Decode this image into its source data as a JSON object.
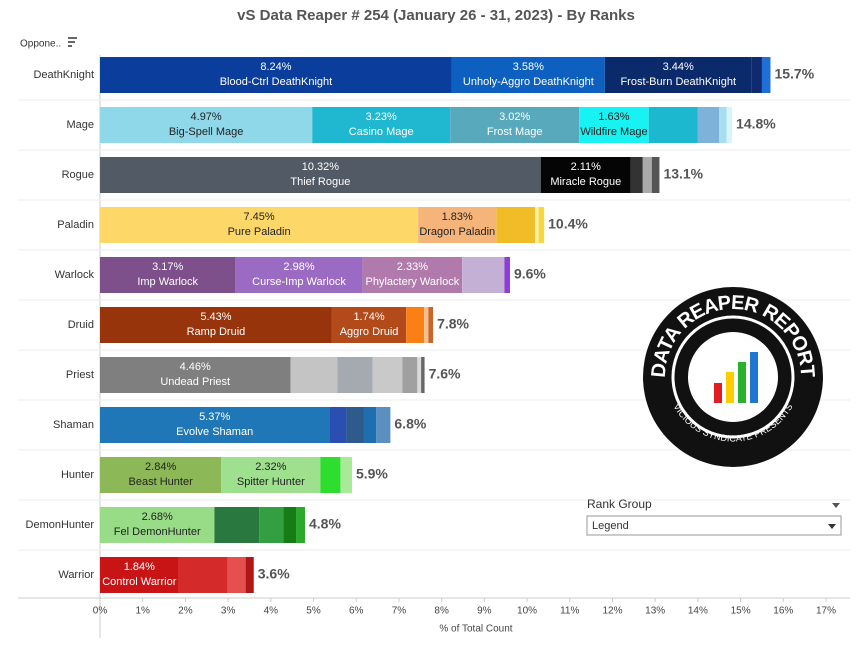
{
  "chart_data": {
    "type": "stacked-bar-h",
    "title": "vS Data Reaper #  254 (January 26 - 31, 2023) - By Ranks",
    "row_header": "Oppone..",
    "x_label": "% of Total Count",
    "xlim": [
      0,
      17
    ],
    "xticks": [
      {
        "value": 0,
        "label": "0%"
      },
      {
        "value": 1,
        "label": "1%"
      },
      {
        "value": 2,
        "label": "2%"
      },
      {
        "value": 3,
        "label": "3%"
      },
      {
        "value": 4,
        "label": "4%"
      },
      {
        "value": 5,
        "label": "5%"
      },
      {
        "value": 6,
        "label": "6%"
      },
      {
        "value": 7,
        "label": "7%"
      },
      {
        "value": 8,
        "label": "8%"
      },
      {
        "value": 9,
        "label": "9%"
      },
      {
        "value": 10,
        "label": "10%"
      },
      {
        "value": 11,
        "label": "11%"
      },
      {
        "value": 12,
        "label": "12%"
      },
      {
        "value": 13,
        "label": "13%"
      },
      {
        "value": 14,
        "label": "14%"
      },
      {
        "value": 15,
        "label": "15%"
      },
      {
        "value": 16,
        "label": "16%"
      },
      {
        "value": 17,
        "label": "17%"
      }
    ],
    "categories": [
      "DeathKnight",
      "Mage",
      "Rogue",
      "Paladin",
      "Warlock",
      "Druid",
      "Priest",
      "Shaman",
      "Hunter",
      "DemonHunter",
      "Warrior"
    ],
    "totals": [
      15.7,
      14.8,
      13.1,
      10.4,
      9.6,
      7.8,
      7.6,
      6.8,
      5.9,
      4.8,
      3.6
    ],
    "total_labels": [
      "15.7%",
      "14.8%",
      "13.1%",
      "10.4%",
      "9.6%",
      "7.8%",
      "7.6%",
      "6.8%",
      "5.9%",
      "4.8%",
      "3.6%"
    ],
    "rows": [
      [
        {
          "name": "Blood-Ctrl DeathKnight",
          "value": 8.24,
          "value_label": "8.24%",
          "color": "#0a3d9c"
        },
        {
          "name": "Unholy-Aggro DeathKnight",
          "value": 3.58,
          "value_label": "3.58%",
          "color": "#0d5fc0"
        },
        {
          "name": "Frost-Burn DeathKnight",
          "value": 3.44,
          "value_label": "3.44%",
          "color": "#0b2a6b"
        },
        {
          "value": 0.24,
          "color": "#102a70"
        },
        {
          "value": 0.2,
          "color": "#1f6fd6"
        }
      ],
      [
        {
          "name": "Big-Spell Mage",
          "value": 4.97,
          "value_label": "4.97%",
          "color": "#8fd8ea"
        },
        {
          "name": "Casino Mage",
          "value": 3.23,
          "value_label": "3.23%",
          "color": "#1fb8d0"
        },
        {
          "name": "Frost Mage",
          "value": 3.02,
          "value_label": "3.02%",
          "color": "#58a9bb"
        },
        {
          "name": "Wildfire Mage",
          "value": 1.63,
          "value_label": "1.63%",
          "color": "#19f2f2"
        },
        {
          "value": 1.15,
          "color": "#1cb8d0"
        },
        {
          "value": 0.5,
          "color": "#7fb2d9"
        },
        {
          "value": 0.17,
          "color": "#a8dcef"
        },
        {
          "value": 0.13,
          "color": "#d7f4fb"
        }
      ],
      [
        {
          "name": "Thief Rogue",
          "value": 10.32,
          "value_label": "10.32%",
          "color": "#525a66"
        },
        {
          "name": "Miracle Rogue",
          "value": 2.11,
          "value_label": "2.11%",
          "color": "#050505"
        },
        {
          "value": 0.28,
          "color": "#333"
        },
        {
          "value": 0.21,
          "color": "#aaa"
        },
        {
          "value": 0.18,
          "color": "#555"
        }
      ],
      [
        {
          "name": "Pure Paladin",
          "value": 7.45,
          "value_label": "7.45%",
          "color": "#fdd869"
        },
        {
          "name": "Dragon Paladin",
          "value": 1.83,
          "value_label": "1.83%",
          "color": "#f5b57a"
        },
        {
          "value": 0.91,
          "color": "#f0bc28"
        },
        {
          "value": 0.08,
          "color": "#fdf3a8"
        },
        {
          "value": 0.13,
          "color": "#f6d840"
        }
      ],
      [
        {
          "name": "Imp Warlock",
          "value": 3.17,
          "value_label": "3.17%",
          "color": "#7d4f8b"
        },
        {
          "name": "Curse-Imp Warlock",
          "value": 2.98,
          "value_label": "2.98%",
          "color": "#9b6bc4"
        },
        {
          "name": "Phylactery Warlock",
          "value": 2.33,
          "value_label": "2.33%",
          "color": "#b07bac"
        },
        {
          "value": 0.99,
          "color": "#c5b0d5"
        },
        {
          "value": 0.13,
          "color": "#8d3ed6"
        }
      ],
      [
        {
          "name": "Ramp Druid",
          "value": 5.43,
          "value_label": "5.43%",
          "color": "#98340c"
        },
        {
          "name": "Aggro Druid",
          "value": 1.74,
          "value_label": "1.74%",
          "color": "#b24a1a"
        },
        {
          "value": 0.42,
          "color": "#fa7f14"
        },
        {
          "value": 0.1,
          "color": "#f5c08c"
        },
        {
          "value": 0.11,
          "color": "#c8652a"
        }
      ],
      [
        {
          "name": "Undead Priest",
          "value": 4.46,
          "value_label": "4.46%",
          "color": "#7f7f7f"
        },
        {
          "value": 1.1,
          "color": "#c4c4c4"
        },
        {
          "value": 0.82,
          "color": "#a4aab0"
        },
        {
          "value": 0.7,
          "color": "#c9c9c9"
        },
        {
          "value": 0.35,
          "color": "#a0a0a0"
        },
        {
          "value": 0.09,
          "color": "#d9d9d9"
        },
        {
          "value": 0.08,
          "color": "#666"
        }
      ],
      [
        {
          "name": "Evolve Shaman",
          "value": 5.37,
          "value_label": "5.37%",
          "color": "#1f77b8"
        },
        {
          "value": 0.4,
          "color": "#2a4fb0"
        },
        {
          "value": 0.4,
          "color": "#2e5a8c"
        },
        {
          "value": 0.3,
          "color": "#1f6fb0"
        },
        {
          "value": 0.33,
          "color": "#5a8fc0"
        }
      ],
      [
        {
          "name": "Beast Hunter",
          "value": 2.84,
          "value_label": "2.84%",
          "color": "#8db858"
        },
        {
          "name": "Spitter Hunter",
          "value": 2.32,
          "value_label": "2.32%",
          "color": "#9ee08e"
        },
        {
          "value": 0.47,
          "color": "#2ede2e"
        },
        {
          "value": 0.27,
          "color": "#a8ea98"
        }
      ],
      [
        {
          "name": "Fel DemonHunter",
          "value": 2.68,
          "value_label": "2.68%",
          "color": "#99dc88"
        },
        {
          "value": 1.05,
          "color": "#287840"
        },
        {
          "value": 0.56,
          "color": "#32a040"
        },
        {
          "value": 0.3,
          "color": "#167d16"
        },
        {
          "value": 0.21,
          "color": "#2ca82c"
        }
      ],
      [
        {
          "name": "Control Warrior",
          "value": 1.84,
          "value_label": "1.84%",
          "color": "#c81414"
        },
        {
          "value": 1.15,
          "color": "#d42a2a"
        },
        {
          "value": 0.42,
          "color": "#e45050"
        },
        {
          "value": 0.19,
          "color": "#b01818"
        }
      ]
    ],
    "legend_title": "Rank Group",
    "legend_value": "Legend",
    "logo": {
      "title": "DATA REAPER REPORT",
      "subtitle": "VICIOUS SYNDICATE PRESENTS"
    }
  }
}
